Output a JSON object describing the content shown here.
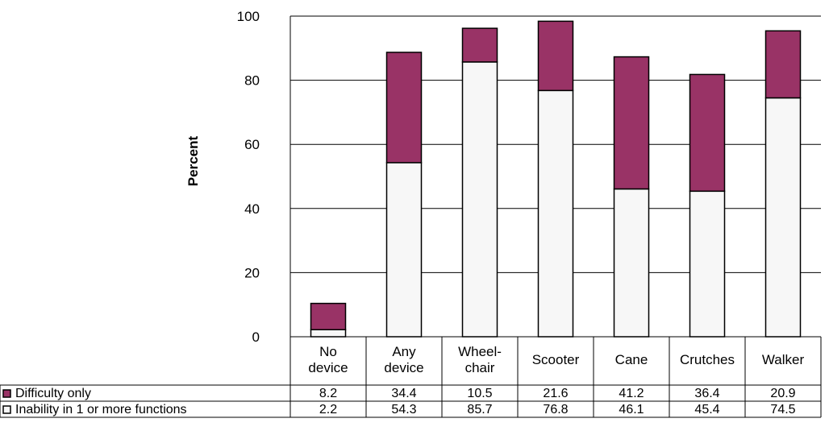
{
  "chart_data": {
    "type": "bar",
    "stacked": true,
    "ylabel": "Percent",
    "ylim": [
      0,
      100
    ],
    "yticks": [
      0,
      20,
      40,
      60,
      80,
      100
    ],
    "grid": true,
    "categories": [
      [
        "No",
        "device"
      ],
      [
        "Any",
        "device"
      ],
      [
        "Wheel-",
        "chair"
      ],
      [
        "Scooter"
      ],
      [
        "Cane"
      ],
      [
        "Crutches"
      ],
      [
        "Walker"
      ]
    ],
    "series": [
      {
        "name": "Inability in 1 or more functions",
        "color": "#f7f7f7",
        "values": [
          2.2,
          54.3,
          85.7,
          76.8,
          46.1,
          45.4,
          74.5
        ]
      },
      {
        "name": "Difficulty only",
        "color": "#993366",
        "values": [
          8.2,
          34.4,
          10.5,
          21.6,
          41.2,
          36.4,
          20.9
        ]
      }
    ],
    "table_rows_order": [
      "Difficulty only",
      "Inability in 1 or more functions"
    ],
    "table_values": [
      [
        "8.2",
        "34.4",
        "10.5",
        "21.6",
        "41.2",
        "36.4",
        "20.9"
      ],
      [
        "2.2",
        "54.3",
        "85.7",
        "76.8",
        "46.1",
        "45.4",
        "74.5"
      ]
    ]
  }
}
